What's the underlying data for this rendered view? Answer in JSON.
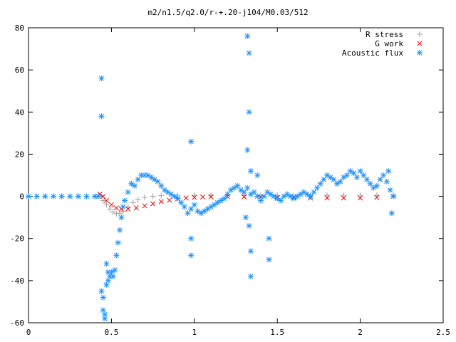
{
  "chart_data": {
    "type": "scatter",
    "title": "m2/n1.5/q2.0/r-+.20-j104/M0.03/512",
    "xlabel": "",
    "ylabel": "",
    "xlim": [
      0,
      2.5
    ],
    "ylim": [
      -60,
      80
    ],
    "xticks": [
      0,
      0.5,
      1,
      1.5,
      2,
      2.5
    ],
    "yticks": [
      -60,
      -40,
      -20,
      0,
      20,
      40,
      60,
      80
    ],
    "xtick_labels": [
      "0",
      "0.5",
      "1",
      "1.5",
      "2",
      "2.5"
    ],
    "ytick_labels": [
      "-60",
      "-40",
      "-20",
      "0",
      "20",
      "40",
      "60",
      "80"
    ],
    "grid": false,
    "legend_position": "top-right",
    "series": [
      {
        "name": "R stress",
        "marker": "plus",
        "color": "#a0a0a0",
        "x": [
          0.0,
          0.1,
          0.2,
          0.3,
          0.4,
          0.43,
          0.45,
          0.47,
          0.49,
          0.51,
          0.53,
          0.55,
          0.57,
          0.6,
          0.63,
          0.66,
          0.7,
          0.75,
          0.8,
          0.9,
          1.0,
          1.1,
          1.2,
          1.3,
          1.4,
          1.5,
          1.6,
          1.7,
          1.8,
          1.9,
          2.0,
          2.1,
          2.2
        ],
        "y": [
          0,
          0,
          0,
          0,
          0,
          0,
          -2,
          -4,
          -6,
          -7.5,
          -8.2,
          -8,
          -7,
          -5,
          -3,
          -1.5,
          -0.5,
          0,
          0.3,
          0.5,
          0.5,
          0.5,
          0.5,
          0.5,
          0.5,
          0.5,
          0.5,
          0.5,
          0.5,
          0.5,
          0.5,
          0.5,
          0.5
        ]
      },
      {
        "name": "G work",
        "marker": "cross",
        "color": "#ff0000",
        "x": [
          0.43,
          0.45,
          0.47,
          0.5,
          0.53,
          0.56,
          0.6,
          0.65,
          0.7,
          0.75,
          0.8,
          0.85,
          0.9,
          0.95,
          1.0,
          1.05,
          1.1,
          1.2,
          1.3,
          1.4,
          1.5,
          1.6,
          1.7,
          1.8,
          1.9,
          2.0,
          2.1,
          2.2
        ],
        "y": [
          1,
          0,
          -2,
          -4,
          -5.5,
          -6,
          -6,
          -5.5,
          -4.5,
          -3.5,
          -2.5,
          -1.8,
          -1.2,
          -0.8,
          -0.5,
          -0.3,
          -0.2,
          -0.1,
          -0.2,
          -0.3,
          -0.5,
          -0.6,
          -0.8,
          -0.8,
          -0.8,
          -0.8,
          -0.5,
          0
        ]
      },
      {
        "name": "Acoustic flux",
        "marker": "star",
        "color": "#1e90ff",
        "x": [
          0.0,
          0.05,
          0.1,
          0.15,
          0.2,
          0.25,
          0.3,
          0.35,
          0.4,
          0.42,
          0.44,
          0.45,
          0.46,
          0.47,
          0.48,
          0.49,
          0.5,
          0.51,
          0.52,
          0.53,
          0.54,
          0.55,
          0.56,
          0.57,
          0.58,
          0.6,
          0.62,
          0.64,
          0.66,
          0.68,
          0.7,
          0.72,
          0.74,
          0.76,
          0.78,
          0.8,
          0.82,
          0.84,
          0.86,
          0.88,
          0.9,
          0.92,
          0.94,
          0.96,
          0.98,
          1.0,
          1.02,
          1.04,
          1.06,
          1.08,
          1.1,
          1.12,
          1.14,
          1.16,
          1.18,
          1.2,
          1.22,
          1.24,
          1.26,
          1.28,
          1.3,
          1.32,
          1.34,
          1.36,
          1.38,
          1.4,
          1.42,
          1.44,
          1.46,
          1.48,
          1.5,
          1.52,
          1.54,
          1.56,
          1.58,
          1.6,
          1.62,
          1.64,
          1.66,
          1.68,
          1.7,
          1.72,
          1.74,
          1.76,
          1.78,
          1.8,
          1.82,
          1.84,
          1.86,
          1.88,
          1.9,
          1.92,
          1.94,
          1.96,
          1.98,
          2.0,
          2.02,
          2.04,
          2.06,
          2.08,
          2.1,
          2.12,
          2.14,
          2.16,
          2.18,
          2.2,
          0.44,
          0.44,
          0.98,
          0.98,
          1.32,
          1.33,
          1.33,
          1.32,
          1.34,
          1.34,
          1.34,
          1.31,
          1.33,
          1.45,
          1.45,
          1.38,
          2.17,
          2.19,
          0.45,
          0.46,
          0.47,
          0.48,
          0.98
        ],
        "y": [
          0,
          0,
          0,
          0,
          0,
          0,
          0,
          0,
          0,
          0,
          -45,
          -48,
          -56,
          -42,
          -36,
          -38,
          -36,
          -38,
          -35,
          -28,
          -22,
          -16,
          -10,
          -5,
          -2,
          2,
          6,
          5,
          8,
          10,
          10,
          10,
          9,
          8,
          7,
          5,
          3,
          2,
          1,
          0,
          -1,
          -3,
          -5,
          -8,
          -6,
          -4,
          -7,
          -8,
          -7,
          -6,
          -5,
          -4,
          -3,
          -2,
          -1,
          1,
          3,
          4,
          5,
          3,
          2,
          4,
          1,
          2,
          0,
          -2,
          0,
          2,
          1,
          0,
          -1,
          -2,
          0,
          1,
          0,
          -1,
          0,
          1,
          2,
          1,
          0,
          2,
          4,
          6,
          8,
          10,
          9,
          8,
          6,
          7,
          9,
          10,
          12,
          11,
          9,
          12,
          10,
          8,
          6,
          4,
          5,
          8,
          10,
          7,
          3,
          0,
          56,
          38,
          26,
          -28,
          76,
          68,
          40,
          22,
          12,
          -26,
          -38,
          -10,
          -14,
          -30,
          -20,
          10,
          12,
          -8,
          -54,
          -58,
          -32,
          -40,
          -20
        ],
        "note_marker_style": "asterisk"
      }
    ]
  }
}
